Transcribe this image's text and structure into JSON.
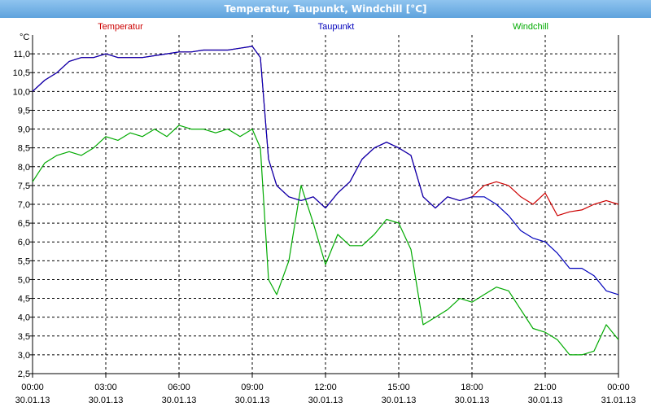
{
  "window": {
    "title": "Temperatur, Taupunkt, Windchill [°C]"
  },
  "chart_data": {
    "type": "line",
    "title": "Temperatur, Taupunkt, Windchill [°C]",
    "unit_label": "°C",
    "xlabel": "",
    "ylabel": "°C",
    "ylim": [
      2.5,
      11.5
    ],
    "xlim": [
      "2013-01-30 00:00",
      "2013-01-31 00:00"
    ],
    "grid": true,
    "legend_position": "top",
    "y_ticks": [
      "2,5",
      "3,0",
      "3,5",
      "4,0",
      "4,5",
      "5,0",
      "5,5",
      "6,0",
      "6,5",
      "7,0",
      "7,5",
      "8,0",
      "8,5",
      "9,0",
      "9,5",
      "10,0",
      "10,5",
      "11,0"
    ],
    "x_ticks": [
      {
        "time": "00:00",
        "date": "30.01.13"
      },
      {
        "time": "03:00",
        "date": "30.01.13"
      },
      {
        "time": "06:00",
        "date": "30.01.13"
      },
      {
        "time": "09:00",
        "date": "30.01.13"
      },
      {
        "time": "12:00",
        "date": "30.01.13"
      },
      {
        "time": "15:00",
        "date": "30.01.13"
      },
      {
        "time": "18:00",
        "date": "30.01.13"
      },
      {
        "time": "21:00",
        "date": "30.01.13"
      },
      {
        "time": "00:00",
        "date": "31.01.13"
      }
    ],
    "series": [
      {
        "name": "Temperatur",
        "color": "#cc0000",
        "x": [
          "2013-01-30 00:00",
          "2013-01-30 00:30",
          "2013-01-30 01:00",
          "2013-01-30 01:30",
          "2013-01-30 02:00",
          "2013-01-30 02:30",
          "2013-01-30 03:00",
          "2013-01-30 03:30",
          "2013-01-30 04:00",
          "2013-01-30 04:30",
          "2013-01-30 05:00",
          "2013-01-30 05:30",
          "2013-01-30 06:00",
          "2013-01-30 06:30",
          "2013-01-30 07:00",
          "2013-01-30 07:30",
          "2013-01-30 08:00",
          "2013-01-30 08:30",
          "2013-01-30 09:00",
          "2013-01-30 09:20",
          "2013-01-30 09:40",
          "2013-01-30 10:00",
          "2013-01-30 10:30",
          "2013-01-30 11:00",
          "2013-01-30 11:30",
          "2013-01-30 12:00",
          "2013-01-30 12:30",
          "2013-01-30 13:00",
          "2013-01-30 13:30",
          "2013-01-30 14:00",
          "2013-01-30 14:30",
          "2013-01-30 15:00",
          "2013-01-30 15:30",
          "2013-01-30 16:00",
          "2013-01-30 16:30",
          "2013-01-30 17:00",
          "2013-01-30 17:30",
          "2013-01-30 18:00",
          "2013-01-30 18:30",
          "2013-01-30 19:00",
          "2013-01-30 19:30",
          "2013-01-30 20:00",
          "2013-01-30 20:30",
          "2013-01-30 21:00",
          "2013-01-30 21:30",
          "2013-01-30 22:00",
          "2013-01-30 22:30",
          "2013-01-30 23:00",
          "2013-01-30 23:30",
          "2013-01-31 00:00"
        ],
        "values": [
          10.0,
          10.3,
          10.5,
          10.8,
          10.9,
          10.9,
          11.0,
          10.9,
          10.9,
          10.9,
          10.95,
          11.0,
          11.05,
          11.05,
          11.1,
          11.1,
          11.1,
          11.15,
          11.2,
          10.9,
          8.2,
          7.5,
          7.2,
          7.1,
          7.2,
          6.9,
          7.3,
          7.6,
          8.2,
          8.5,
          8.65,
          8.5,
          8.3,
          7.2,
          6.9,
          7.2,
          7.1,
          7.2,
          7.5,
          7.6,
          7.5,
          7.2,
          7.0,
          7.3,
          6.7,
          6.8,
          6.85,
          7.0,
          7.1,
          7.0
        ]
      },
      {
        "name": "Taupunkt",
        "color": "#0000bb",
        "x": [
          "2013-01-30 00:00",
          "2013-01-30 00:30",
          "2013-01-30 01:00",
          "2013-01-30 01:30",
          "2013-01-30 02:00",
          "2013-01-30 02:30",
          "2013-01-30 03:00",
          "2013-01-30 03:30",
          "2013-01-30 04:00",
          "2013-01-30 04:30",
          "2013-01-30 05:00",
          "2013-01-30 05:30",
          "2013-01-30 06:00",
          "2013-01-30 06:30",
          "2013-01-30 07:00",
          "2013-01-30 07:30",
          "2013-01-30 08:00",
          "2013-01-30 08:30",
          "2013-01-30 09:00",
          "2013-01-30 09:20",
          "2013-01-30 09:40",
          "2013-01-30 10:00",
          "2013-01-30 10:30",
          "2013-01-30 11:00",
          "2013-01-30 11:30",
          "2013-01-30 12:00",
          "2013-01-30 12:30",
          "2013-01-30 13:00",
          "2013-01-30 13:30",
          "2013-01-30 14:00",
          "2013-01-30 14:30",
          "2013-01-30 15:00",
          "2013-01-30 15:30",
          "2013-01-30 16:00",
          "2013-01-30 16:30",
          "2013-01-30 17:00",
          "2013-01-30 17:30",
          "2013-01-30 18:00",
          "2013-01-30 18:30",
          "2013-01-30 19:00",
          "2013-01-30 19:30",
          "2013-01-30 20:00",
          "2013-01-30 20:30",
          "2013-01-30 21:00",
          "2013-01-30 21:30",
          "2013-01-30 22:00",
          "2013-01-30 22:30",
          "2013-01-30 23:00",
          "2013-01-30 23:30",
          "2013-01-31 00:00"
        ],
        "values": [
          10.0,
          10.3,
          10.5,
          10.8,
          10.9,
          10.9,
          11.0,
          10.9,
          10.9,
          10.9,
          10.95,
          11.0,
          11.05,
          11.05,
          11.1,
          11.1,
          11.1,
          11.15,
          11.2,
          10.9,
          8.2,
          7.5,
          7.2,
          7.1,
          7.2,
          6.9,
          7.3,
          7.6,
          8.2,
          8.5,
          8.65,
          8.5,
          8.3,
          7.2,
          6.9,
          7.2,
          7.1,
          7.2,
          7.2,
          7.0,
          6.7,
          6.3,
          6.1,
          6.0,
          5.7,
          5.3,
          5.3,
          5.1,
          4.7,
          4.6
        ]
      },
      {
        "name": "Windchill",
        "color": "#00aa00",
        "x": [
          "2013-01-30 00:00",
          "2013-01-30 00:30",
          "2013-01-30 01:00",
          "2013-01-30 01:30",
          "2013-01-30 02:00",
          "2013-01-30 02:30",
          "2013-01-30 03:00",
          "2013-01-30 03:30",
          "2013-01-30 04:00",
          "2013-01-30 04:30",
          "2013-01-30 05:00",
          "2013-01-30 05:30",
          "2013-01-30 06:00",
          "2013-01-30 06:30",
          "2013-01-30 07:00",
          "2013-01-30 07:30",
          "2013-01-30 08:00",
          "2013-01-30 08:30",
          "2013-01-30 09:00",
          "2013-01-30 09:20",
          "2013-01-30 09:40",
          "2013-01-30 10:00",
          "2013-01-30 10:30",
          "2013-01-30 11:00",
          "2013-01-30 11:30",
          "2013-01-30 12:00",
          "2013-01-30 12:30",
          "2013-01-30 13:00",
          "2013-01-30 13:30",
          "2013-01-30 14:00",
          "2013-01-30 14:30",
          "2013-01-30 15:00",
          "2013-01-30 15:30",
          "2013-01-30 16:00",
          "2013-01-30 16:30",
          "2013-01-30 17:00",
          "2013-01-30 17:30",
          "2013-01-30 18:00",
          "2013-01-30 18:30",
          "2013-01-30 19:00",
          "2013-01-30 19:30",
          "2013-01-30 20:00",
          "2013-01-30 20:30",
          "2013-01-30 21:00",
          "2013-01-30 21:30",
          "2013-01-30 22:00",
          "2013-01-30 22:30",
          "2013-01-30 23:00",
          "2013-01-30 23:30",
          "2013-01-31 00:00"
        ],
        "values": [
          7.6,
          8.1,
          8.3,
          8.4,
          8.3,
          8.5,
          8.8,
          8.7,
          8.9,
          8.8,
          9.0,
          8.8,
          9.1,
          9.0,
          9.0,
          8.9,
          9.0,
          8.8,
          9.0,
          8.5,
          5.0,
          4.6,
          5.5,
          7.5,
          6.5,
          5.4,
          6.2,
          5.9,
          5.9,
          6.2,
          6.6,
          6.5,
          5.8,
          3.8,
          4.0,
          4.2,
          4.5,
          4.4,
          4.6,
          4.8,
          4.7,
          4.2,
          3.7,
          3.6,
          3.4,
          3.0,
          3.0,
          3.1,
          3.8,
          3.4
        ]
      }
    ]
  }
}
